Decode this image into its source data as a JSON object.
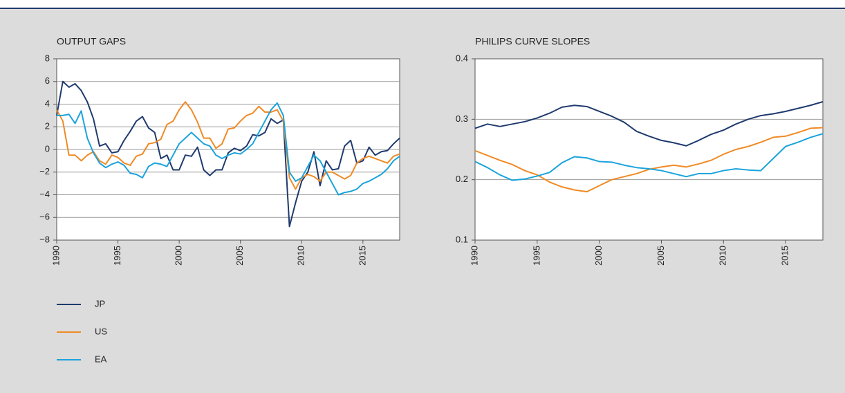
{
  "chart_data": [
    {
      "type": "line",
      "title": "OUTPUT GAPS",
      "x": [
        1990,
        1990.5,
        1991,
        1991.5,
        1992,
        1992.5,
        1993,
        1993.5,
        1994,
        1994.5,
        1995,
        1995.5,
        1996,
        1996.5,
        1997,
        1997.5,
        1998,
        1998.5,
        1999,
        1999.5,
        2000,
        2000.5,
        2001,
        2001.5,
        2002,
        2002.5,
        2003,
        2003.5,
        2004,
        2004.5,
        2005,
        2005.5,
        2006,
        2006.5,
        2007,
        2007.5,
        2008,
        2008.5,
        2009,
        2009.5,
        2010,
        2010.5,
        2011,
        2011.5,
        2012,
        2012.5,
        2013,
        2013.5,
        2014,
        2014.5,
        2015,
        2015.5,
        2016,
        2016.5,
        2017,
        2017.5,
        2018
      ],
      "xlim": [
        1990,
        2018
      ],
      "xticks": [
        1990,
        1995,
        2000,
        2005,
        2010,
        2015
      ],
      "ylim": [
        -8,
        8
      ],
      "yticks": [
        {
          "value": -8,
          "label": "−8"
        },
        {
          "value": -6,
          "label": "−6"
        },
        {
          "value": -4,
          "label": "−4"
        },
        {
          "value": -2,
          "label": "−2"
        },
        0,
        2,
        4,
        6,
        8
      ],
      "grid": true,
      "series": [
        {
          "name": "JP",
          "color": "#1f3a6e",
          "values": [
            3,
            6.0,
            5.5,
            5.8,
            5.2,
            4.2,
            2.7,
            0.3,
            0.5,
            -0.3,
            -0.2,
            0.8,
            1.6,
            2.5,
            2.9,
            1.9,
            1.5,
            -0.8,
            -0.5,
            -1.8,
            -1.8,
            -0.5,
            -0.6,
            0.2,
            -1.8,
            -2.3,
            -1.8,
            -1.8,
            -0.3,
            0.1,
            -0.1,
            0.3,
            1.3,
            1.2,
            1.5,
            2.7,
            2.3,
            2.6,
            -6.8,
            -4.7,
            -2.8,
            -2.0,
            -0.2,
            -3.2,
            -1.0,
            -1.8,
            -1.7,
            0.3,
            0.8,
            -1.2,
            -1.0,
            0.2,
            -0.5,
            -0.2,
            -0.1,
            0.5,
            1.0
          ]
        },
        {
          "name": "US",
          "color": "#f08a24",
          "values": [
            3.5,
            2.5,
            -0.5,
            -0.5,
            -1.0,
            -0.5,
            -0.2,
            -1.0,
            -1.3,
            -0.5,
            -0.7,
            -1.2,
            -1.4,
            -0.6,
            -0.4,
            0.5,
            0.6,
            0.9,
            2.2,
            2.5,
            3.5,
            4.2,
            3.5,
            2.4,
            1.0,
            1.0,
            0.1,
            0.5,
            1.8,
            1.9,
            2.5,
            3.0,
            3.2,
            3.8,
            3.3,
            3.3,
            3.5,
            2.5,
            -2.5,
            -3.5,
            -2.5,
            -2.2,
            -2.4,
            -2.8,
            -2.0,
            -2.0,
            -2.3,
            -2.6,
            -2.3,
            -1.2,
            -0.8,
            -0.6,
            -0.8,
            -1.0,
            -1.2,
            -0.6,
            -0.4
          ]
        },
        {
          "name": "EA",
          "color": "#1aa3dc",
          "values": [
            3.0,
            3.0,
            3.1,
            2.3,
            3.4,
            1.0,
            -0.3,
            -1.2,
            -1.6,
            -1.3,
            -1.1,
            -1.4,
            -2.1,
            -2.2,
            -2.5,
            -1.5,
            -1.2,
            -1.3,
            -1.5,
            -0.5,
            0.5,
            1.0,
            1.5,
            1.0,
            0.5,
            0.3,
            -0.5,
            -0.8,
            -0.5,
            -0.3,
            -0.4,
            0.0,
            0.5,
            1.5,
            2.5,
            3.5,
            4.1,
            3.0,
            -2.0,
            -2.8,
            -2.5,
            -1.5,
            -0.5,
            -1.0,
            -2.0,
            -3.0,
            -4.0,
            -3.8,
            -3.7,
            -3.5,
            -3.0,
            -2.8,
            -2.5,
            -2.2,
            -1.7,
            -1.0,
            -0.6
          ]
        }
      ]
    },
    {
      "type": "line",
      "title": "PHILIPS CURVE SLOPES",
      "x": [
        1990,
        1991,
        1992,
        1993,
        1994,
        1995,
        1996,
        1997,
        1998,
        1999,
        2000,
        2001,
        2002,
        2003,
        2004,
        2005,
        2006,
        2007,
        2008,
        2009,
        2010,
        2011,
        2012,
        2013,
        2014,
        2015,
        2016,
        2017,
        2018
      ],
      "xlim": [
        1990,
        2018
      ],
      "xticks": [
        1990,
        1995,
        2000,
        2005,
        2010,
        2015
      ],
      "ylim": [
        0.1,
        0.4
      ],
      "yticks": [
        0.1,
        0.2,
        0.3,
        0.4
      ],
      "grid": true,
      "series": [
        {
          "color": "#1f3a6e",
          "values": [
            0.285,
            0.292,
            0.288,
            0.292,
            0.296,
            0.302,
            0.31,
            0.32,
            0.323,
            0.321,
            0.313,
            0.305,
            0.295,
            0.28,
            0.272,
            0.265,
            0.261,
            0.256,
            0.265,
            0.275,
            0.282,
            0.292,
            0.3,
            0.306,
            0.309,
            0.313,
            0.318,
            0.323,
            0.329
          ]
        },
        {
          "color": "#f08a24",
          "values": [
            0.248,
            0.24,
            0.232,
            0.225,
            0.215,
            0.208,
            0.196,
            0.188,
            0.183,
            0.18,
            0.19,
            0.2,
            0.205,
            0.21,
            0.217,
            0.221,
            0.224,
            0.221,
            0.226,
            0.232,
            0.242,
            0.25,
            0.255,
            0.262,
            0.27,
            0.272,
            0.278,
            0.285,
            0.286
          ]
        },
        {
          "color": "#1aa3dc",
          "values": [
            0.23,
            0.22,
            0.208,
            0.199,
            0.201,
            0.206,
            0.212,
            0.228,
            0.238,
            0.236,
            0.23,
            0.229,
            0.224,
            0.22,
            0.218,
            0.215,
            0.21,
            0.205,
            0.21,
            0.21,
            0.215,
            0.218,
            0.216,
            0.215,
            0.235,
            0.255,
            0.262,
            0.27,
            0.276
          ]
        }
      ]
    }
  ]
}
